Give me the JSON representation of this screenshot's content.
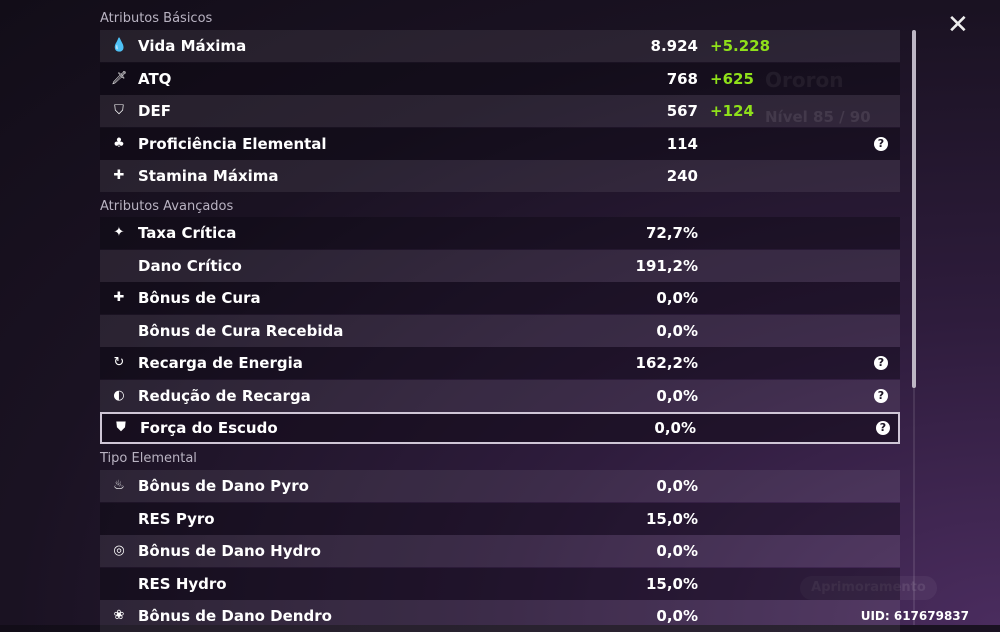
{
  "background": {
    "character_name": "Ororon",
    "level": "Nível 85 / 90",
    "upgrade_button": "Aprimoramento"
  },
  "sections": {
    "basic": "Atributos Básicos",
    "advanced": "Atributos Avançados",
    "elemental": "Tipo Elemental"
  },
  "basic": [
    {
      "icon": "hp-drop-icon",
      "label": "Vida Máxima",
      "value": "8.924",
      "bonus": "+5.228"
    },
    {
      "icon": "sword-icon",
      "label": "ATQ",
      "value": "768",
      "bonus": "+625"
    },
    {
      "icon": "shield-icon",
      "label": "DEF",
      "value": "567",
      "bonus": "+124"
    },
    {
      "icon": "elemental-mastery-icon",
      "label": "Proficiência Elemental",
      "value": "114",
      "help": true
    },
    {
      "icon": "stamina-icon",
      "label": "Stamina Máxima",
      "value": "240"
    }
  ],
  "advanced": [
    {
      "icon": "crit-rate-icon",
      "label": "Taxa Crítica",
      "value": "72,7%"
    },
    {
      "icon": "",
      "label": "Dano Crítico",
      "value": "191,2%"
    },
    {
      "icon": "healing-cross-icon",
      "label": "Bônus de Cura",
      "value": "0,0%"
    },
    {
      "icon": "",
      "label": "Bônus de Cura Recebida",
      "value": "0,0%"
    },
    {
      "icon": "energy-recharge-icon",
      "label": "Recarga de Energia",
      "value": "162,2%",
      "help": true
    },
    {
      "icon": "cd-reduction-icon",
      "label": "Redução de Recarga",
      "value": "0,0%",
      "help": true
    },
    {
      "icon": "shield-strength-icon",
      "label": "Força do Escudo",
      "value": "0,0%",
      "help": true,
      "selected": true
    }
  ],
  "elemental": [
    {
      "icon": "pyro-icon",
      "label": "Bônus de Dano Pyro",
      "value": "0,0%"
    },
    {
      "icon": "",
      "label": "RES Pyro",
      "value": "15,0%"
    },
    {
      "icon": "hydro-icon",
      "label": "Bônus de Dano Hydro",
      "value": "0,0%"
    },
    {
      "icon": "",
      "label": "RES Hydro",
      "value": "15,0%"
    },
    {
      "icon": "dendro-icon",
      "label": "Bônus de Dano Dendro",
      "value": "0,0%"
    }
  ],
  "uid": "UID: 617679837",
  "colors": {
    "bonus": "#8fe01a"
  }
}
